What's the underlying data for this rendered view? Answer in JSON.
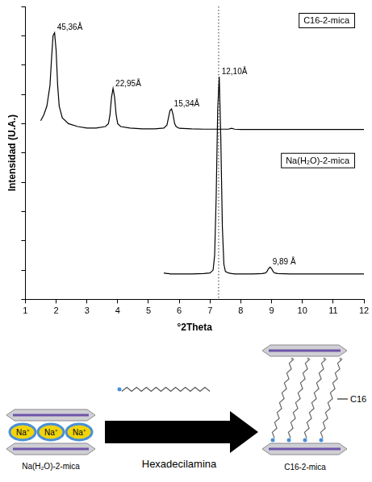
{
  "chart_data": {
    "type": "line",
    "x_label": "°2Theta",
    "y_label": "Intensidad (U.A.)",
    "x": [
      1.5,
      1.6,
      1.7,
      1.8,
      1.85,
      1.9,
      1.95,
      2.0,
      2.05,
      2.1,
      2.2,
      2.4,
      2.7,
      3.0,
      3.3,
      3.6,
      3.7,
      3.75,
      3.8,
      3.85,
      3.9,
      3.95,
      4.0,
      4.1,
      4.4,
      4.8,
      5.2,
      5.5,
      5.6,
      5.65,
      5.7,
      5.75,
      5.8,
      5.85,
      5.9,
      6.0,
      6.4,
      6.8,
      7.0,
      7.1,
      7.15,
      7.2,
      7.25,
      7.3,
      7.35,
      7.4,
      7.45,
      7.5,
      7.6,
      7.7,
      7.8,
      8.0,
      8.4,
      8.7,
      8.8,
      8.85,
      8.9,
      8.95,
      9.0,
      9.05,
      9.1,
      9.2,
      9.6,
      10.0,
      10.5,
      11.0,
      11.5,
      12.0
    ],
    "series": [
      {
        "name": "C16-2-mica",
        "color": "#000000",
        "values": [
          6.1,
          6.3,
          6.6,
          7.3,
          8.2,
          9.0,
          9.1,
          8.5,
          7.3,
          6.6,
          6.2,
          6.0,
          5.9,
          5.85,
          5.85,
          5.9,
          6.0,
          6.3,
          6.9,
          7.2,
          6.9,
          6.3,
          6.0,
          5.9,
          5.85,
          5.82,
          5.82,
          5.85,
          5.95,
          6.2,
          6.45,
          6.5,
          6.3,
          6.0,
          5.9,
          5.84,
          5.82,
          5.81,
          5.81,
          5.81,
          5.81,
          5.81,
          5.81,
          5.81,
          5.81,
          5.81,
          5.81,
          5.81,
          5.81,
          5.84,
          5.81,
          5.8,
          5.8,
          5.8,
          5.8,
          5.8,
          5.8,
          5.8,
          5.8,
          5.8,
          5.8,
          5.8,
          5.8,
          5.8,
          5.8,
          5.8,
          5.8,
          5.8
        ]
      },
      {
        "name": "Na(H₂O)-2-mica",
        "color": "#000000",
        "values": [
          null,
          null,
          null,
          null,
          null,
          null,
          null,
          null,
          null,
          null,
          null,
          null,
          null,
          null,
          null,
          null,
          null,
          null,
          null,
          null,
          null,
          null,
          null,
          null,
          null,
          null,
          null,
          0.9,
          0.88,
          0.88,
          0.87,
          0.87,
          0.87,
          0.87,
          0.87,
          0.87,
          0.87,
          0.88,
          0.9,
          1.0,
          1.5,
          3.5,
          6.5,
          7.6,
          5.5,
          2.5,
          1.2,
          0.95,
          0.9,
          0.88,
          0.87,
          0.87,
          0.87,
          0.88,
          0.9,
          0.95,
          1.05,
          1.1,
          1.05,
          0.95,
          0.9,
          0.88,
          0.87,
          0.87,
          0.87,
          0.87,
          0.87,
          0.87
        ]
      }
    ],
    "xlim": [
      1,
      12
    ],
    "xticks": [
      1,
      2,
      3,
      4,
      5,
      6,
      7,
      8,
      9,
      10,
      11,
      12
    ],
    "ylim": [
      0,
      10
    ],
    "yticks": [
      0,
      1,
      2,
      3,
      4,
      5,
      6,
      7,
      8,
      9,
      10
    ],
    "grid": false,
    "tick_labels": "x",
    "annotations": [
      {
        "text": "45,36Å",
        "x": 1.95,
        "y": 9.1
      },
      {
        "text": "22,95Å",
        "x": 3.85,
        "y": 7.2
      },
      {
        "text": "15,34Å",
        "x": 5.75,
        "y": 6.5
      },
      {
        "text": "12,10Å",
        "x": 7.3,
        "y": 7.6
      },
      {
        "text": "9,89 Å",
        "x": 8.95,
        "y": 1.1
      }
    ],
    "reference_lines": [
      {
        "x": 7.28,
        "line_style": "dotted"
      }
    ]
  },
  "diagram": {
    "left_label": "Na(H₂O)-2-mica",
    "ions": [
      "Na⁺",
      "Na⁺",
      "Na⁺"
    ],
    "arrow_label": "Hexadecilamina",
    "right_label": "C16-2-mica",
    "chain_label": "C16"
  }
}
